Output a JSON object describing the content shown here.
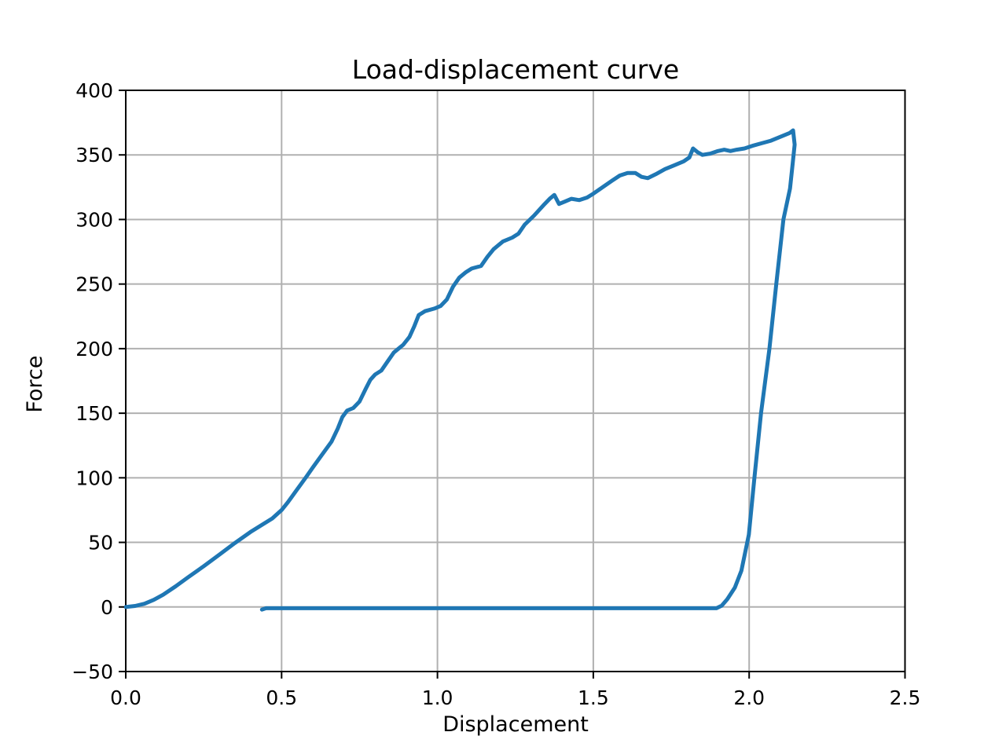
{
  "figure": {
    "background": "#ffffff",
    "spine_color": "#000000",
    "grid_color": "#b0b0b0",
    "tick_color": "#000000"
  },
  "chart_data": {
    "type": "line",
    "title": "Load-displacement curve",
    "xlabel": "Displacement",
    "ylabel": "Force",
    "xlim": [
      0.0,
      2.5
    ],
    "ylim": [
      -50,
      400
    ],
    "xticks": [
      0.0,
      0.5,
      1.0,
      1.5,
      2.0,
      2.5
    ],
    "xtick_labels": [
      "0.0",
      "0.5",
      "1.0",
      "1.5",
      "2.0",
      "2.5"
    ],
    "yticks": [
      -50,
      0,
      50,
      100,
      150,
      200,
      250,
      300,
      350,
      400
    ],
    "ytick_labels": [
      "−50",
      "0",
      "50",
      "100",
      "150",
      "200",
      "250",
      "300",
      "350",
      "400"
    ],
    "grid": true,
    "legend": false,
    "series": [
      {
        "name": "load-displacement",
        "color": "#1f77b4",
        "line_width": 5,
        "points": [
          [
            0.0,
            0
          ],
          [
            0.03,
            0.8
          ],
          [
            0.06,
            2.5
          ],
          [
            0.09,
            5.5
          ],
          [
            0.12,
            9.5
          ],
          [
            0.16,
            16
          ],
          [
            0.2,
            23
          ],
          [
            0.25,
            31.5
          ],
          [
            0.3,
            40.5
          ],
          [
            0.35,
            49.5
          ],
          [
            0.4,
            58
          ],
          [
            0.44,
            64
          ],
          [
            0.47,
            68.5
          ],
          [
            0.5,
            75
          ],
          [
            0.52,
            81
          ],
          [
            0.55,
            91
          ],
          [
            0.58,
            101
          ],
          [
            0.6,
            108
          ],
          [
            0.63,
            118
          ],
          [
            0.66,
            128
          ],
          [
            0.68,
            138
          ],
          [
            0.695,
            147
          ],
          [
            0.71,
            152
          ],
          [
            0.73,
            154
          ],
          [
            0.75,
            159
          ],
          [
            0.77,
            169
          ],
          [
            0.785,
            176
          ],
          [
            0.8,
            180
          ],
          [
            0.82,
            183
          ],
          [
            0.84,
            190
          ],
          [
            0.86,
            197
          ],
          [
            0.875,
            200
          ],
          [
            0.89,
            203
          ],
          [
            0.91,
            209
          ],
          [
            0.925,
            217
          ],
          [
            0.94,
            226
          ],
          [
            0.96,
            229
          ],
          [
            0.99,
            231
          ],
          [
            1.01,
            233
          ],
          [
            1.03,
            238
          ],
          [
            1.05,
            248
          ],
          [
            1.07,
            255
          ],
          [
            1.09,
            259
          ],
          [
            1.11,
            262
          ],
          [
            1.14,
            264
          ],
          [
            1.16,
            271
          ],
          [
            1.18,
            277
          ],
          [
            1.21,
            283
          ],
          [
            1.24,
            286
          ],
          [
            1.26,
            289
          ],
          [
            1.28,
            296
          ],
          [
            1.31,
            303
          ],
          [
            1.34,
            311
          ],
          [
            1.36,
            316
          ],
          [
            1.375,
            319
          ],
          [
            1.39,
            312
          ],
          [
            1.41,
            314
          ],
          [
            1.43,
            316
          ],
          [
            1.455,
            315
          ],
          [
            1.48,
            317
          ],
          [
            1.5,
            320
          ],
          [
            1.53,
            325
          ],
          [
            1.56,
            330
          ],
          [
            1.585,
            334
          ],
          [
            1.61,
            336
          ],
          [
            1.635,
            336
          ],
          [
            1.655,
            333
          ],
          [
            1.675,
            332
          ],
          [
            1.7,
            335
          ],
          [
            1.73,
            339
          ],
          [
            1.76,
            342
          ],
          [
            1.79,
            345
          ],
          [
            1.808,
            348
          ],
          [
            1.82,
            355
          ],
          [
            1.835,
            352
          ],
          [
            1.85,
            350
          ],
          [
            1.875,
            351
          ],
          [
            1.9,
            353
          ],
          [
            1.92,
            354
          ],
          [
            1.94,
            353
          ],
          [
            1.96,
            354
          ],
          [
            1.985,
            355
          ],
          [
            2.01,
            357
          ],
          [
            2.04,
            359
          ],
          [
            2.07,
            361
          ],
          [
            2.1,
            364
          ],
          [
            2.13,
            367
          ],
          [
            2.141,
            369
          ],
          [
            2.146,
            358
          ],
          [
            2.14,
            344
          ],
          [
            2.131,
            324
          ],
          [
            2.11,
            300
          ],
          [
            2.087,
            250
          ],
          [
            2.065,
            200
          ],
          [
            2.038,
            150
          ],
          [
            2.017,
            100
          ],
          [
            1.999,
            56
          ],
          [
            1.975,
            28
          ],
          [
            1.954,
            15
          ],
          [
            1.93,
            6
          ],
          [
            1.912,
            1
          ],
          [
            1.895,
            -1
          ],
          [
            1.6,
            -1
          ],
          [
            1.2,
            -1
          ],
          [
            0.8,
            -1
          ],
          [
            0.55,
            -1
          ],
          [
            0.45,
            -1
          ],
          [
            0.437,
            -2
          ]
        ]
      }
    ]
  }
}
